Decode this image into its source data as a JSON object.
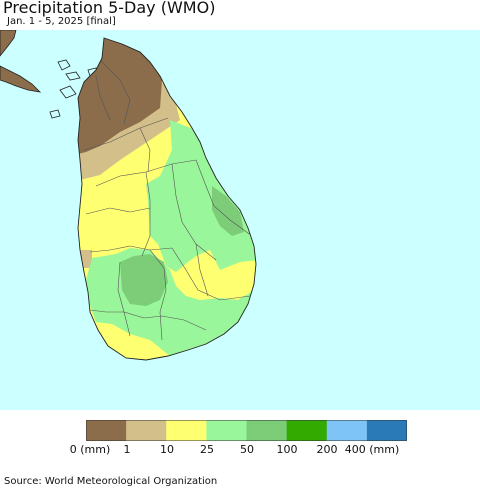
{
  "title": "Precipitation 5-Day (WMO)",
  "subtitle": "Jan. 1 - 5, 2025 [final]",
  "source": "Source: World Meteorological Organization",
  "ocean_color": "#ccffff",
  "legend": {
    "bins": [
      {
        "color": "#8b6c4b"
      },
      {
        "color": "#d2bf8a"
      },
      {
        "color": "#ffff72"
      },
      {
        "color": "#9af69a"
      },
      {
        "color": "#7ccc78"
      },
      {
        "color": "#33aa00"
      },
      {
        "color": "#7fc4f6"
      },
      {
        "color": "#2b7ab8"
      }
    ],
    "labels": [
      "0 (mm)",
      "1",
      "10",
      "25",
      "50",
      "100",
      "200",
      "400 (mm)"
    ]
  }
}
